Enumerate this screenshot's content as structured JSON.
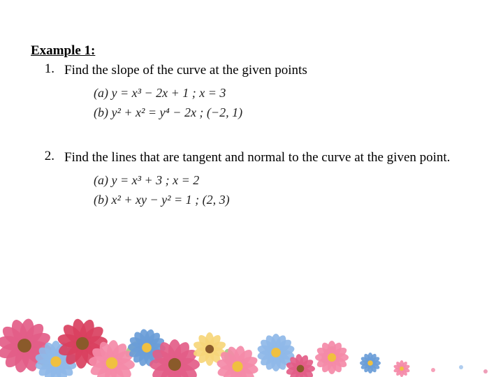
{
  "heading": "Example 1:",
  "q1": {
    "num": "1.",
    "text": "Find the slope of the curve at the given points",
    "eq_a": "(a)  y = x³ − 2x + 1  ; x = 3",
    "eq_b": "(b)  y² + x² = y⁴ − 2x  ; (−2, 1)"
  },
  "q2": {
    "num": "2.",
    "text": "Find the lines that are tangent and normal to the curve at the given point.",
    "eq_a": "(a)  y = x³ + 3  ; x = 2",
    "eq_b": "(b)  x² + xy − y² = 1  ; (2, 3)"
  },
  "flowers": {
    "petal_pink": "#f48aa8",
    "petal_pink_dark": "#e35d88",
    "petal_red": "#d94060",
    "petal_blue": "#8fb8e8",
    "petal_blue_dark": "#6a9dd8",
    "petal_yellow": "#f6d67a",
    "center_yellow": "#f0c040",
    "center_brown": "#8a5a2a",
    "leaf": "#9cc47a"
  }
}
